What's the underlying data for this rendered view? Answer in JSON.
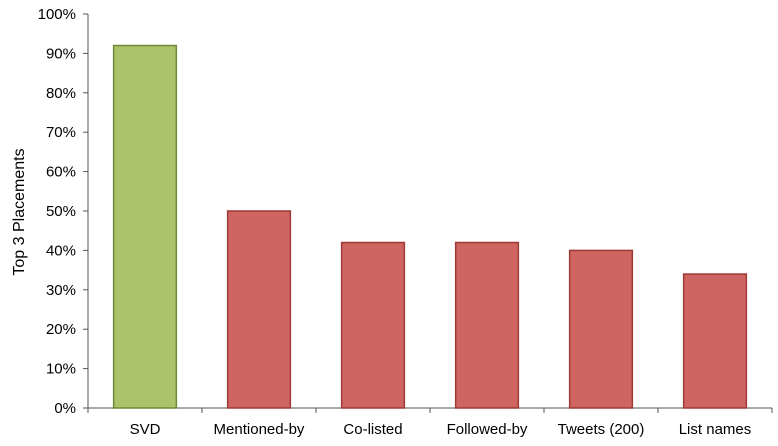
{
  "chart_data": {
    "type": "bar",
    "categories": [
      "SVD",
      "Mentioned-by",
      "Co-listed",
      "Followed-by",
      "Tweets (200)",
      "List names"
    ],
    "values": [
      92,
      50,
      42,
      42,
      40,
      34
    ],
    "value_unit": "%",
    "bar_colors": [
      "#a9c46a",
      "#cf6560",
      "#cf6560",
      "#cf6560",
      "#cf6560",
      "#cf6560"
    ],
    "bar_edge_colors": [
      "#6f8a3a",
      "#9e3a36",
      "#9e3a36",
      "#9e3a36",
      "#9e3a36",
      "#9e3a36"
    ],
    "title": "",
    "xlabel": "",
    "ylabel": "Top 3 Placements",
    "ylim": [
      0,
      100
    ],
    "yticks": [
      0,
      10,
      20,
      30,
      40,
      50,
      60,
      70,
      80,
      90,
      100
    ],
    "ytick_labels": [
      "0%",
      "10%",
      "20%",
      "30%",
      "40%",
      "50%",
      "60%",
      "70%",
      "80%",
      "90%",
      "100%"
    ],
    "grid": false,
    "legend": "none"
  }
}
